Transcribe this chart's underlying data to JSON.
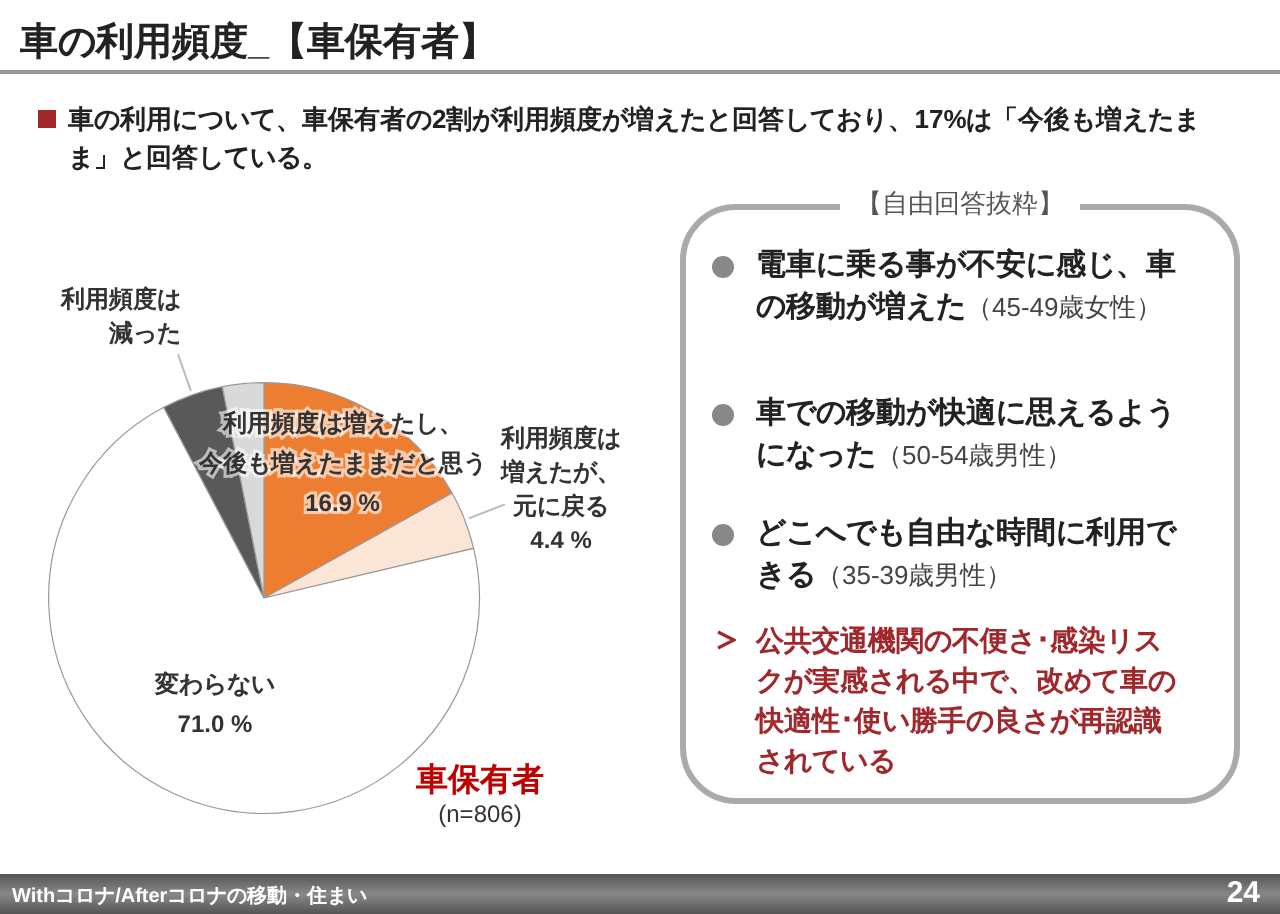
{
  "chart_data": {
    "type": "pie",
    "title": "車の利用頻度_【車保有者】",
    "subtitle": "車の利用について、車保有者の2割が利用頻度が増えたと回答しており、17%は「今後も増えたまま」と回答している。",
    "categories": [
      "利用頻度は増えたし、今後も増えたままだと思う",
      "利用頻度は増えたが、元に戻る",
      "変わらない",
      "利用頻度は減った",
      null
    ],
    "values": [
      16.9,
      4.4,
      71.0,
      4.6,
      3.1
    ],
    "colors": [
      "#ed7d31",
      "#fbe5d6",
      "#ffffff",
      "#595959",
      "#d9d9d9"
    ],
    "value_labels": [
      "16.9 %",
      "4.4 %",
      "71.0 %",
      null,
      null
    ],
    "legend": false,
    "annotations": [
      "車保有者",
      "(n=806)",
      "【自由回答抜粋】",
      "電車に乗る事が不安に感じ、車の移動が増えた",
      "（45-49歳女性）",
      "車での移動が快適に思えるようになった",
      "（50-54歳男性）",
      "どこへでも自由な時間に利用できる",
      "（35-39歳男性）",
      "公共交通機関の不便さ･感染リスクが実感される中で、改めて車の快適性･使い勝手の良さが再認識されている",
      "Withコロナ/Afterコロナの移動・住まい",
      "24"
    ]
  }
}
